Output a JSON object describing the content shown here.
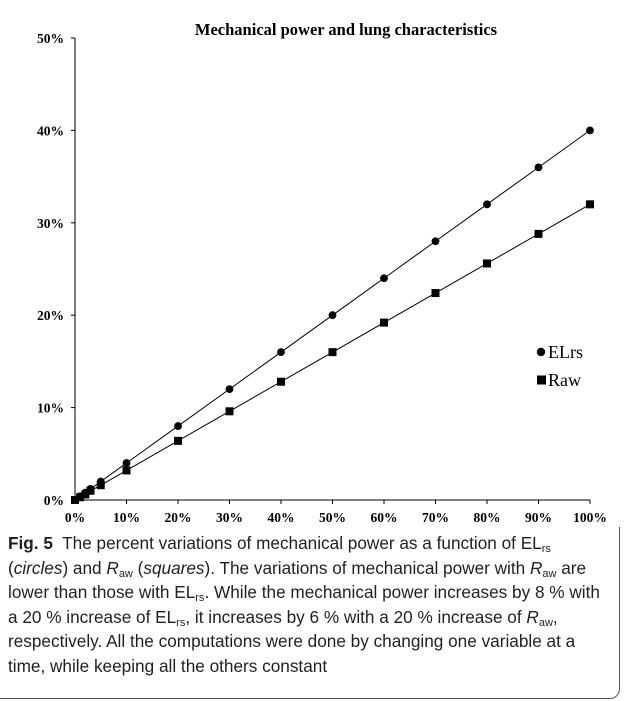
{
  "chart_data": {
    "type": "line",
    "title": "Mechanical power and lung characteristics",
    "xlabel": "",
    "ylabel": "",
    "x_ticks": [
      "0%",
      "10%",
      "20%",
      "30%",
      "40%",
      "50%",
      "60%",
      "70%",
      "80%",
      "90%",
      "100%"
    ],
    "y_ticks": [
      "0%",
      "10%",
      "20%",
      "30%",
      "40%",
      "50%"
    ],
    "xlim": [
      0,
      100
    ],
    "ylim": [
      0,
      50
    ],
    "grid": false,
    "legend_position": "right",
    "series": [
      {
        "name": "ELrs",
        "marker": "circle",
        "x": [
          0,
          1,
          2,
          3,
          5,
          10,
          20,
          30,
          40,
          50,
          60,
          70,
          80,
          90,
          100
        ],
        "y": [
          0,
          0.4,
          0.8,
          1.2,
          2,
          4,
          8,
          12,
          16,
          20,
          24,
          28,
          32,
          36,
          40
        ]
      },
      {
        "name": "Raw",
        "marker": "square",
        "x": [
          0,
          1,
          2,
          3,
          5,
          10,
          20,
          30,
          40,
          50,
          60,
          70,
          80,
          90,
          100
        ],
        "y": [
          0,
          0.3,
          0.6,
          1.0,
          1.6,
          3.2,
          6.4,
          9.6,
          12.8,
          16,
          19.2,
          22.4,
          25.6,
          28.8,
          32
        ]
      }
    ]
  },
  "caption": {
    "label": "Fig. 5",
    "t1": "The percent variations of mechanical power as a function of EL",
    "t2": " (",
    "t3": "circles",
    "t4": ") and ",
    "t5": "R",
    "t6": " (",
    "t7": "squares",
    "t8": "). The variations of mechanical power with ",
    "t9": "R",
    "t10": " are lower than those with EL",
    "t11": ". While the mechanical power increases by 8 % with a 20 % increase of EL",
    "t12": ", it increases by 6 % with a 20 % increase of ",
    "t13": "R",
    "t14": ", respectively. All the computations were done by changing one variable at a time, while keeping all the others constant",
    "sub_rs": "rs",
    "sub_aw": "aw"
  }
}
